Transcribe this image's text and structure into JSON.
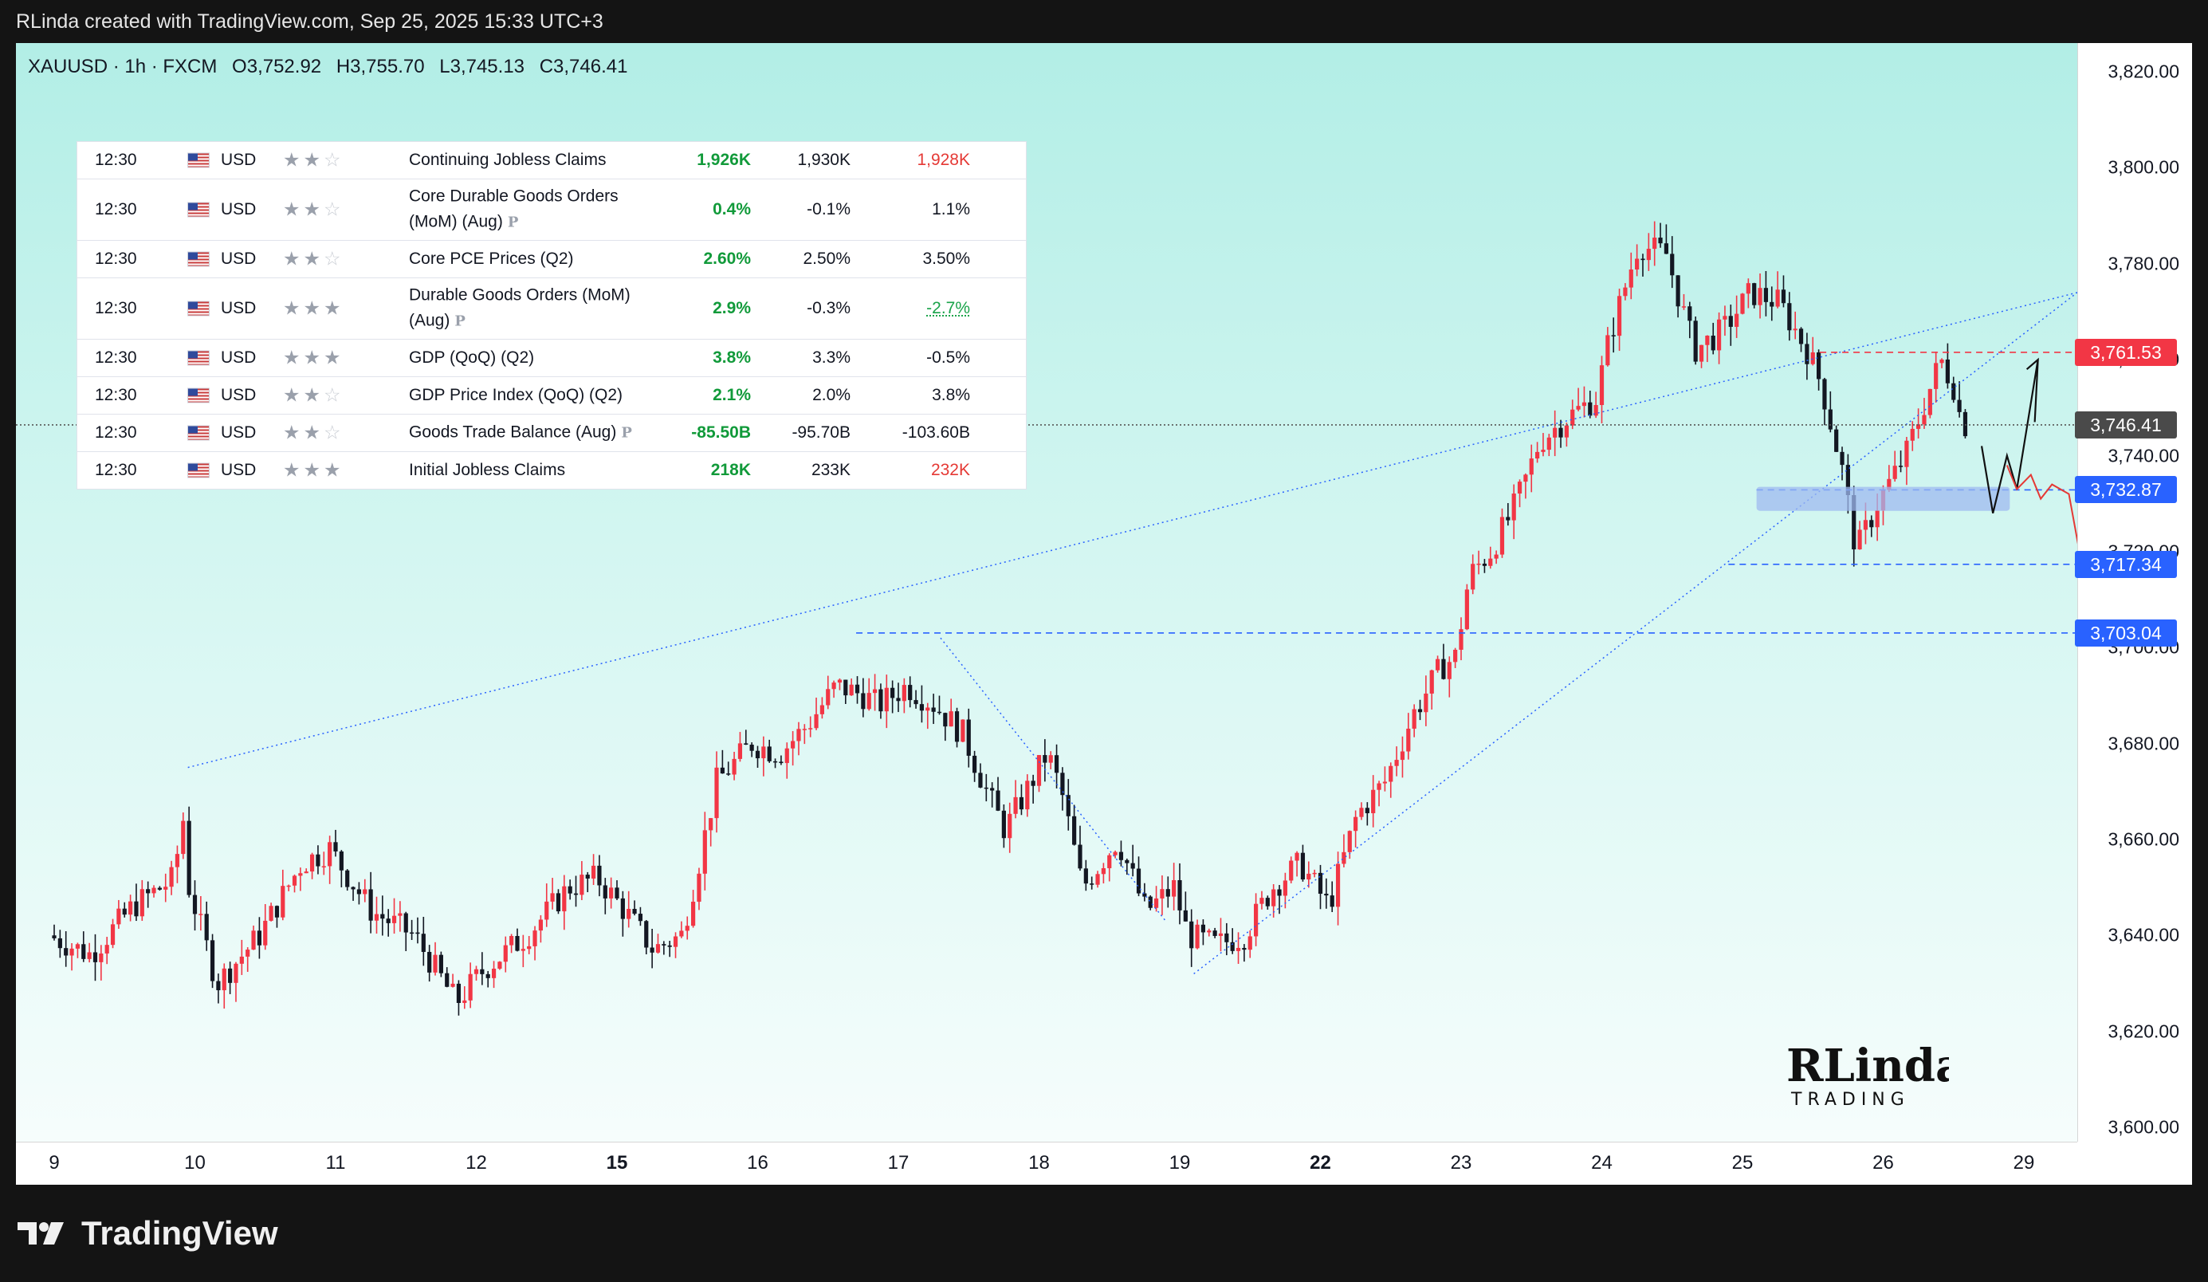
{
  "header": {
    "attribution": "RLinda created with TradingView.com, Sep 25, 2025 15:33 UTC+3"
  },
  "symbol": {
    "name": "XAUUSD · 1h · FXCM",
    "open": "O3,752.92",
    "high": "H3,755.70",
    "low": "L3,745.13",
    "close": "C3,746.41"
  },
  "colors": {
    "up": "#f23645",
    "down": "#131722",
    "support": "#2962ff",
    "resistance": "#f23645",
    "current": "#4a4a4a",
    "channel": "#2962ff"
  },
  "events": [
    {
      "time": "12:30",
      "currency": "USD",
      "stars": 2,
      "name": "Continuing Jobless Claims",
      "prelim": false,
      "actual": "1,926K",
      "forecast": "1,930K",
      "previous": "1,928K",
      "prev_style": "red"
    },
    {
      "time": "12:30",
      "currency": "USD",
      "stars": 2,
      "name": "Core Durable Goods Orders (MoM) (Aug)",
      "prelim": true,
      "actual": "0.4%",
      "forecast": "-0.1%",
      "previous": "1.1%",
      "prev_style": ""
    },
    {
      "time": "12:30",
      "currency": "USD",
      "stars": 2,
      "name": "Core PCE Prices (Q2)",
      "prelim": false,
      "actual": "2.60%",
      "forecast": "2.50%",
      "previous": "3.50%",
      "prev_style": ""
    },
    {
      "time": "12:30",
      "currency": "USD",
      "stars": 3,
      "name": "Durable Goods Orders (MoM) (Aug)",
      "prelim": true,
      "actual": "2.9%",
      "forecast": "-0.3%",
      "previous": "-2.7%",
      "prev_style": "green"
    },
    {
      "time": "12:30",
      "currency": "USD",
      "stars": 3,
      "name": "GDP (QoQ) (Q2)",
      "prelim": false,
      "actual": "3.8%",
      "forecast": "3.3%",
      "previous": "-0.5%",
      "prev_style": ""
    },
    {
      "time": "12:30",
      "currency": "USD",
      "stars": 2,
      "name": "GDP Price Index (QoQ) (Q2)",
      "prelim": false,
      "actual": "2.1%",
      "forecast": "2.0%",
      "previous": "3.8%",
      "prev_style": ""
    },
    {
      "time": "12:30",
      "currency": "USD",
      "stars": 2,
      "name": "Goods Trade Balance (Aug)",
      "prelim": true,
      "actual": "-85.50B",
      "forecast": "-95.70B",
      "previous": "-103.60B",
      "prev_style": ""
    },
    {
      "time": "12:30",
      "currency": "USD",
      "stars": 3,
      "name": "Initial Jobless Claims",
      "prelim": false,
      "actual": "218K",
      "forecast": "233K",
      "previous": "232K",
      "prev_style": "red"
    }
  ],
  "chart_data": {
    "type": "candlestick",
    "x_unit": "trading day (September 2025)",
    "ylim": [
      3597,
      3826
    ],
    "yticks": [
      3600,
      3620,
      3640,
      3660,
      3680,
      3700,
      3720,
      3740,
      3760,
      3780,
      3800,
      3820
    ],
    "ytick_labels": [
      "3,600.00",
      "3,620.00",
      "3,640.00",
      "3,660.00",
      "3,680.00",
      "3,700.00",
      "3,720.00",
      "3,740.00",
      "3,760.00",
      "3,780.00",
      "3,800.00",
      "3,820.00"
    ],
    "xticks": [
      {
        "label": "9",
        "bold": false
      },
      {
        "label": "10",
        "bold": false
      },
      {
        "label": "11",
        "bold": false
      },
      {
        "label": "12",
        "bold": false
      },
      {
        "label": "15",
        "bold": true
      },
      {
        "label": "16",
        "bold": false
      },
      {
        "label": "17",
        "bold": false
      },
      {
        "label": "18",
        "bold": false
      },
      {
        "label": "19",
        "bold": false
      },
      {
        "label": "22",
        "bold": true
      },
      {
        "label": "23",
        "bold": false
      },
      {
        "label": "24",
        "bold": false
      },
      {
        "label": "25",
        "bold": false
      },
      {
        "label": "26",
        "bold": false
      },
      {
        "label": "29",
        "bold": false
      }
    ],
    "path": [
      [
        0.0,
        3640
      ],
      [
        0.3,
        3636
      ],
      [
        0.6,
        3646
      ],
      [
        0.9,
        3652
      ],
      [
        0.95,
        3667
      ],
      [
        1.0,
        3650
      ],
      [
        1.2,
        3630
      ],
      [
        1.5,
        3640
      ],
      [
        1.8,
        3655
      ],
      [
        2.0,
        3658
      ],
      [
        2.3,
        3645
      ],
      [
        2.6,
        3640
      ],
      [
        2.9,
        3626
      ],
      [
        3.1,
        3633
      ],
      [
        3.4,
        3640
      ],
      [
        3.7,
        3650
      ],
      [
        3.9,
        3652
      ],
      [
        4.1,
        3645
      ],
      [
        4.3,
        3637
      ],
      [
        4.5,
        3640
      ],
      [
        4.6,
        3652
      ],
      [
        4.75,
        3672
      ],
      [
        5.0,
        3680
      ],
      [
        5.2,
        3678
      ],
      [
        5.4,
        3684
      ],
      [
        5.6,
        3692
      ],
      [
        5.8,
        3690
      ],
      [
        5.9,
        3688
      ],
      [
        6.1,
        3692
      ],
      [
        6.3,
        3688
      ],
      [
        6.5,
        3682
      ],
      [
        6.7,
        3668
      ],
      [
        6.8,
        3662
      ],
      [
        6.95,
        3670
      ],
      [
        7.1,
        3678
      ],
      [
        7.2,
        3670
      ],
      [
        7.35,
        3650
      ],
      [
        7.6,
        3660
      ],
      [
        7.8,
        3645
      ],
      [
        8.0,
        3650
      ],
      [
        8.1,
        3640
      ],
      [
        8.3,
        3638
      ],
      [
        8.5,
        3640
      ],
      [
        8.7,
        3650
      ],
      [
        8.9,
        3655
      ],
      [
        9.1,
        3646
      ],
      [
        9.3,
        3665
      ],
      [
        9.5,
        3672
      ],
      [
        9.7,
        3686
      ],
      [
        9.9,
        3696
      ],
      [
        10.0,
        3698
      ],
      [
        10.1,
        3715
      ],
      [
        10.25,
        3720
      ],
      [
        10.4,
        3728
      ],
      [
        10.5,
        3735
      ],
      [
        10.6,
        3743
      ],
      [
        10.8,
        3748
      ],
      [
        11.0,
        3752
      ],
      [
        11.1,
        3765
      ],
      [
        11.3,
        3784
      ],
      [
        11.5,
        3782
      ],
      [
        11.7,
        3762
      ],
      [
        11.9,
        3766
      ],
      [
        12.1,
        3774
      ],
      [
        12.3,
        3772
      ],
      [
        12.5,
        3762
      ],
      [
        12.6,
        3755
      ],
      [
        12.75,
        3737
      ],
      [
        12.85,
        3720
      ],
      [
        13.0,
        3730
      ],
      [
        13.2,
        3740
      ],
      [
        13.35,
        3752
      ],
      [
        13.45,
        3760
      ],
      [
        13.55,
        3754
      ],
      [
        13.6,
        3746.41
      ]
    ],
    "current_price": 3746.41,
    "price_labels": [
      {
        "value": 3761.53,
        "label": "3,761.53",
        "kind": "resistance"
      },
      {
        "value": 3746.41,
        "label": "3,746.41",
        "kind": "current"
      },
      {
        "value": 3732.87,
        "label": "3,732.87",
        "kind": "support"
      },
      {
        "value": 3717.34,
        "label": "3,717.34",
        "kind": "support"
      },
      {
        "value": 3703.04,
        "label": "3,703.04",
        "kind": "support"
      }
    ]
  },
  "watermark": {
    "line1": "RLinda",
    "line2": "TRADING"
  },
  "footer": {
    "brand": "TradingView"
  }
}
